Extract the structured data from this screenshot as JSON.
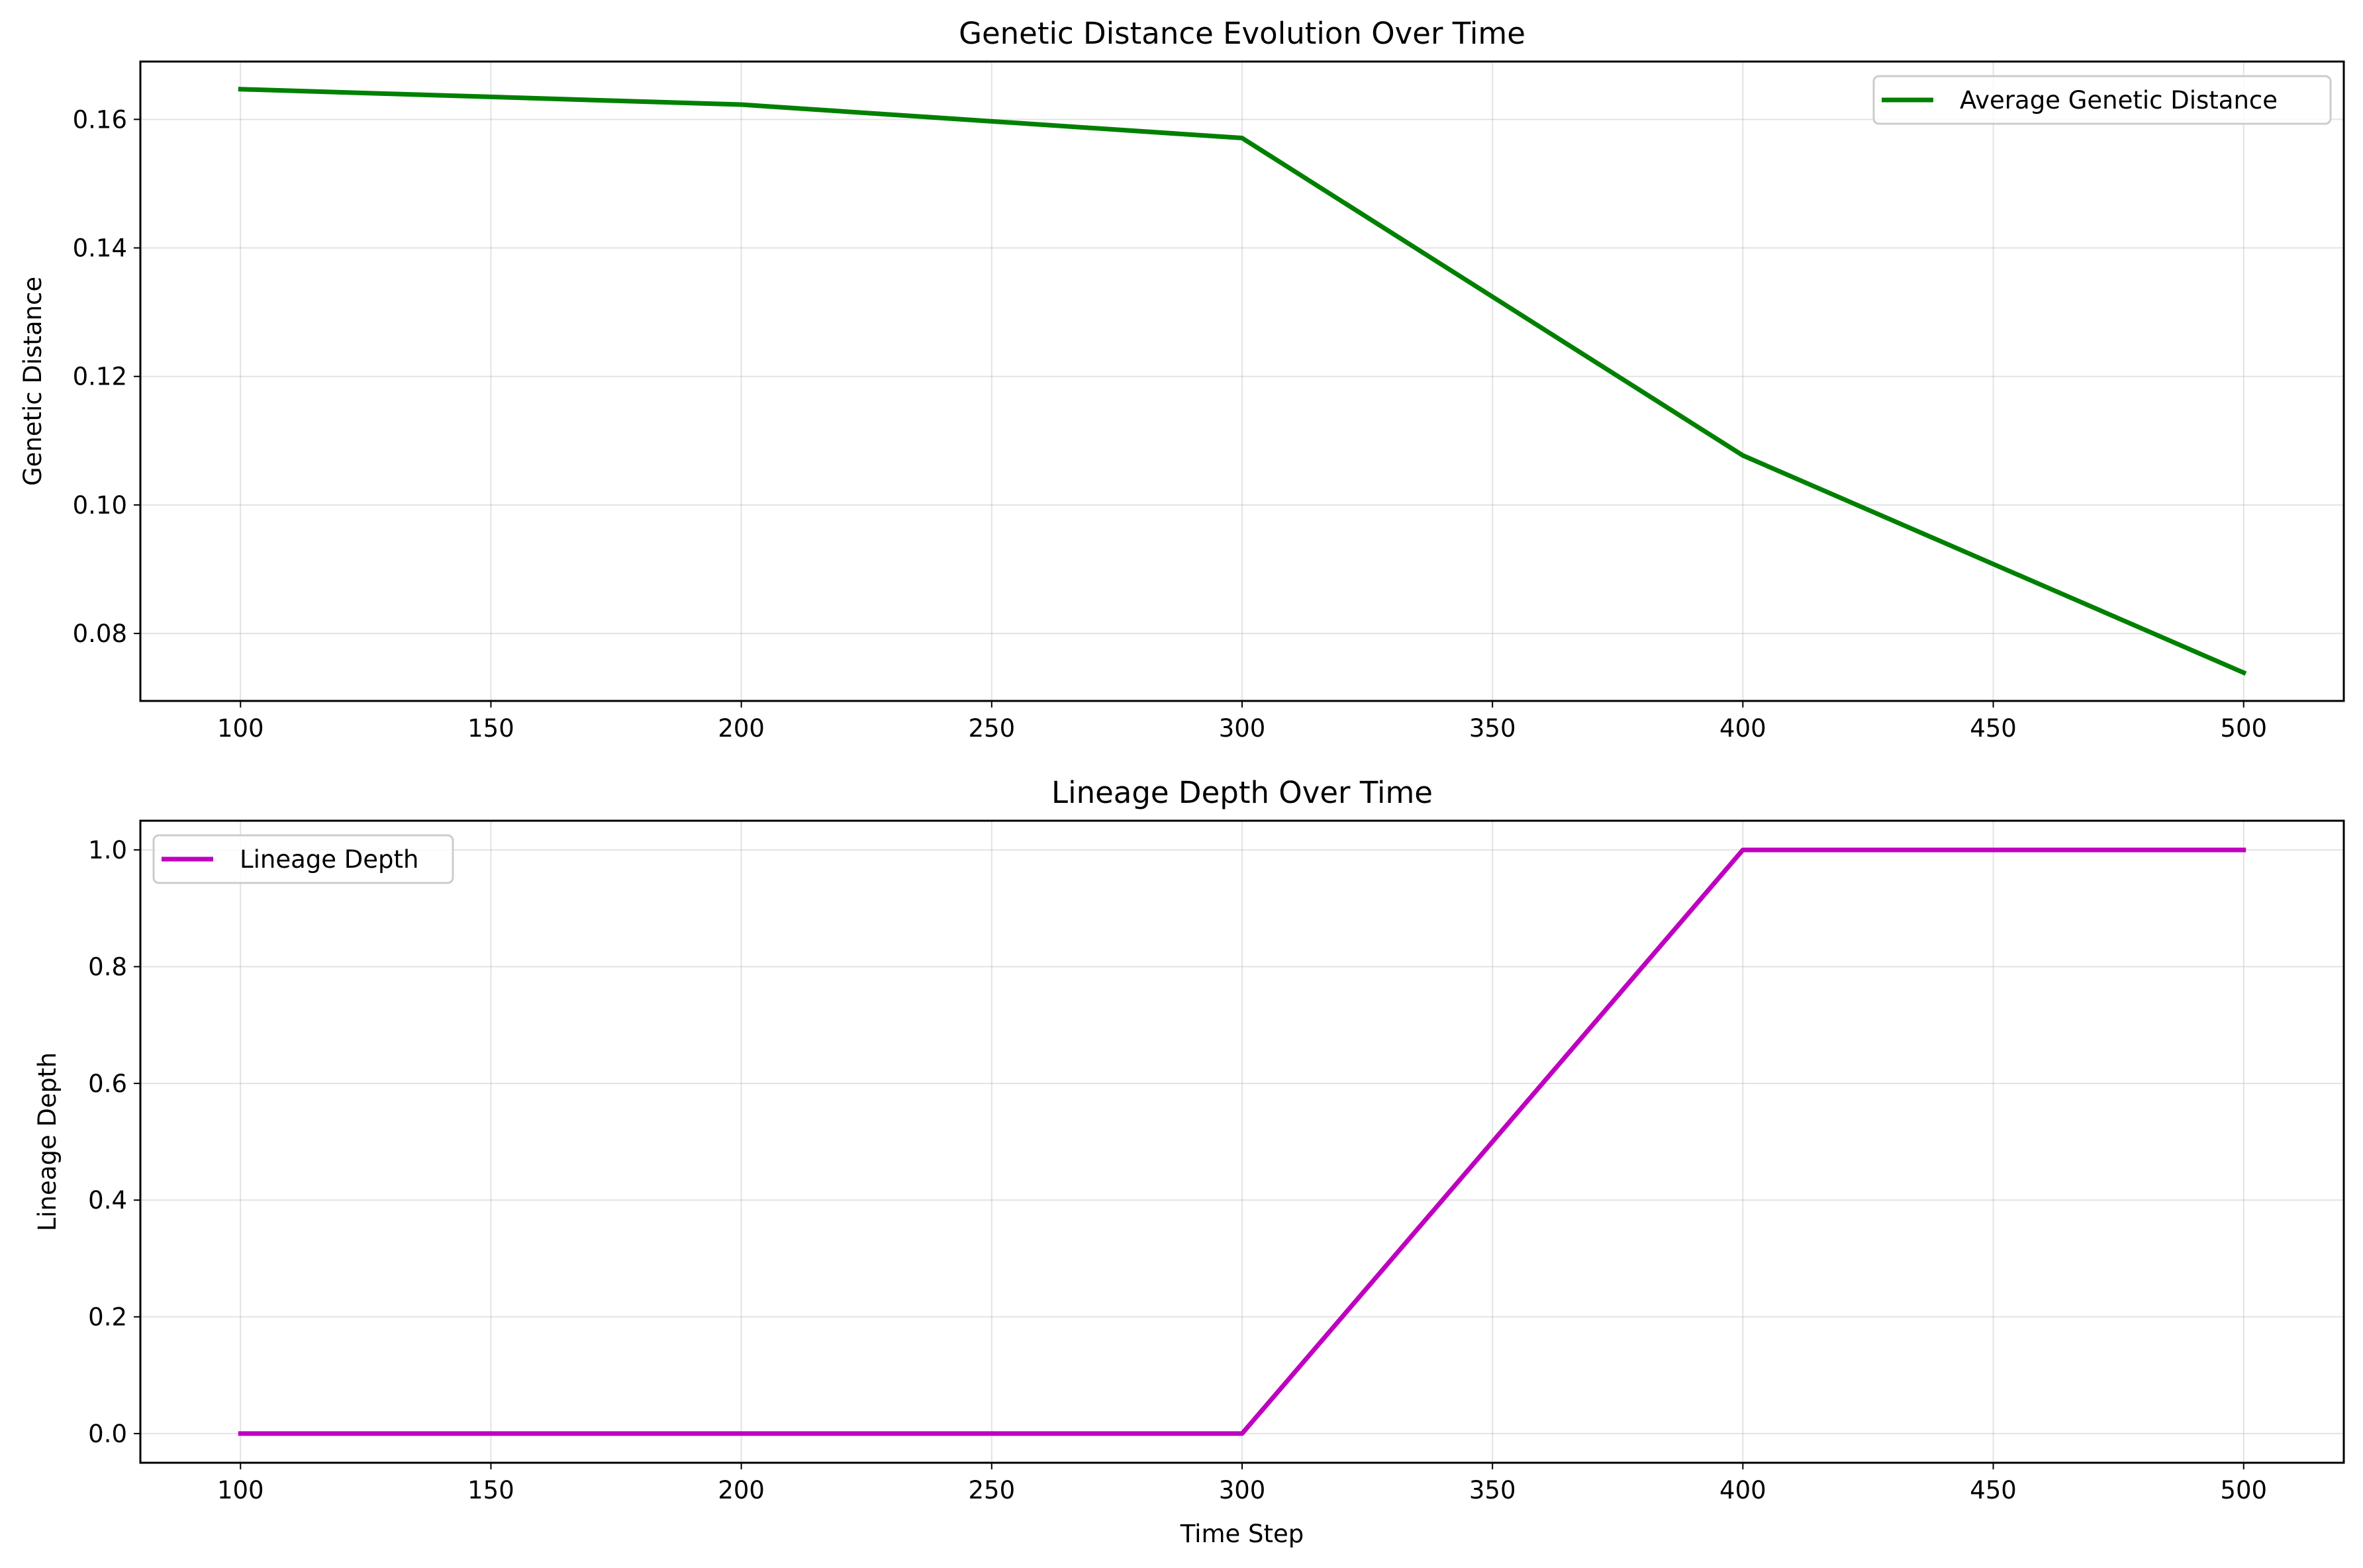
{
  "chart_data": [
    {
      "type": "line",
      "title": "Genetic Distance Evolution Over Time",
      "xlabel": "",
      "ylabel": "Genetic Distance",
      "xlim": [
        80,
        520
      ],
      "ylim": [
        0.0695,
        0.169
      ],
      "x_ticks": [
        100,
        150,
        200,
        250,
        300,
        350,
        400,
        450,
        500
      ],
      "x_tick_labels": [
        "100",
        "150",
        "200",
        "250",
        "300",
        "350",
        "400",
        "450",
        "500"
      ],
      "y_ticks": [
        0.08,
        0.1,
        0.12,
        0.14,
        0.16
      ],
      "y_tick_labels": [
        "0.08",
        "0.10",
        "0.12",
        "0.14",
        "0.16"
      ],
      "grid": true,
      "legend": "top-right",
      "series": [
        {
          "name": "Average Genetic Distance",
          "color": "#008000",
          "x": [
            100,
            200,
            300,
            400,
            500
          ],
          "y": [
            0.1647,
            0.1623,
            0.1571,
            0.1077,
            0.0739
          ]
        }
      ]
    },
    {
      "type": "line",
      "title": "Lineage Depth Over Time",
      "xlabel": "Time Step",
      "ylabel": "Lineage Depth",
      "xlim": [
        80,
        520
      ],
      "ylim": [
        -0.05,
        1.05
      ],
      "x_ticks": [
        100,
        150,
        200,
        250,
        300,
        350,
        400,
        450,
        500
      ],
      "x_tick_labels": [
        "100",
        "150",
        "200",
        "250",
        "300",
        "350",
        "400",
        "450",
        "500"
      ],
      "y_ticks": [
        0.0,
        0.2,
        0.4,
        0.6,
        0.8,
        1.0
      ],
      "y_tick_labels": [
        "0.0",
        "0.2",
        "0.4",
        "0.6",
        "0.8",
        "1.0"
      ],
      "grid": true,
      "legend": "top-left",
      "series": [
        {
          "name": "Lineage Depth",
          "color": "#bf00bf",
          "x": [
            100,
            200,
            300,
            400,
            500
          ],
          "y": [
            0.0,
            0.0,
            0.0,
            1.0,
            1.0
          ]
        }
      ]
    }
  ]
}
